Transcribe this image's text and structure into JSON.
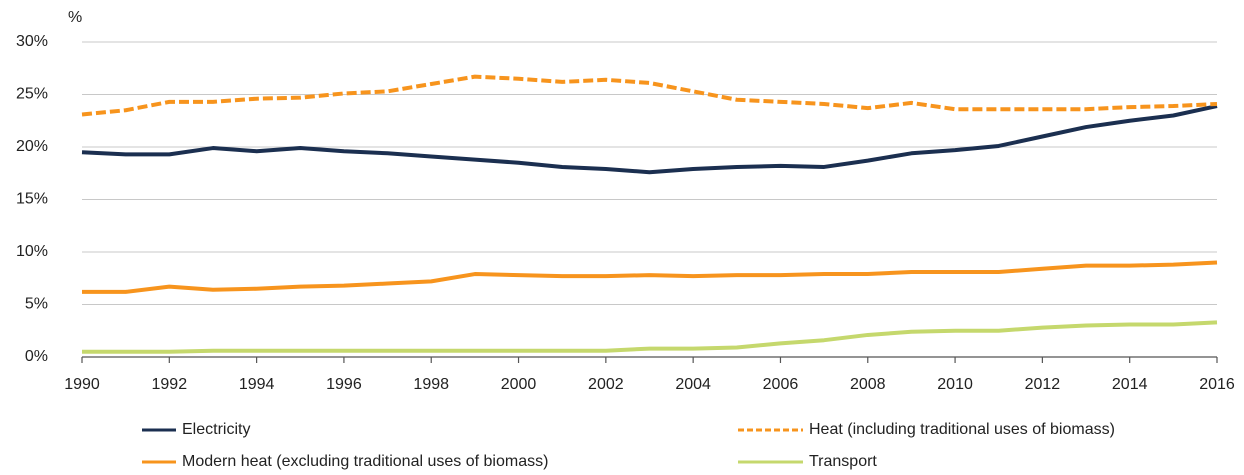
{
  "chart_data": {
    "type": "line",
    "y_axis_label": "%",
    "x": [
      1990,
      1991,
      1992,
      1993,
      1994,
      1995,
      1996,
      1997,
      1998,
      1999,
      2000,
      2001,
      2002,
      2003,
      2004,
      2005,
      2006,
      2007,
      2008,
      2009,
      2010,
      2011,
      2012,
      2013,
      2014,
      2015,
      2016
    ],
    "series": [
      {
        "name": "Electricity",
        "color": "#1b2f50",
        "dash": false,
        "values": [
          19.5,
          19.3,
          19.3,
          19.9,
          19.6,
          19.9,
          19.6,
          19.4,
          19.1,
          18.8,
          18.5,
          18.1,
          17.9,
          17.6,
          17.9,
          18.1,
          18.2,
          18.1,
          18.7,
          19.4,
          19.7,
          20.1,
          21.0,
          21.9,
          22.5,
          23.0,
          23.9
        ]
      },
      {
        "name": "Heat (including traditional uses of biomass)",
        "color": "#f7941d",
        "dash": true,
        "values": [
          23.1,
          23.5,
          24.3,
          24.3,
          24.6,
          24.7,
          25.1,
          25.3,
          26.0,
          26.7,
          26.5,
          26.2,
          26.4,
          26.1,
          25.3,
          24.5,
          24.3,
          24.1,
          23.7,
          24.2,
          23.6,
          23.6,
          23.6,
          23.6,
          23.8,
          23.9,
          24.1
        ]
      },
      {
        "name": "Modern heat (excluding traditional uses of biomass)",
        "color": "#f7941d",
        "dash": false,
        "values": [
          6.2,
          6.2,
          6.7,
          6.4,
          6.5,
          6.7,
          6.8,
          7.0,
          7.2,
          7.9,
          7.8,
          7.7,
          7.7,
          7.8,
          7.7,
          7.8,
          7.8,
          7.9,
          7.9,
          8.1,
          8.1,
          8.1,
          8.4,
          8.7,
          8.7,
          8.8,
          9.0
        ]
      },
      {
        "name": "Transport",
        "color": "#c5d86d",
        "dash": false,
        "values": [
          0.5,
          0.5,
          0.5,
          0.6,
          0.6,
          0.6,
          0.6,
          0.6,
          0.6,
          0.6,
          0.6,
          0.6,
          0.6,
          0.8,
          0.8,
          0.9,
          1.3,
          1.6,
          2.1,
          2.4,
          2.5,
          2.5,
          2.8,
          3.0,
          3.1,
          3.1,
          3.3
        ]
      }
    ],
    "xlim": [
      1990,
      2016
    ],
    "xticks": [
      1990,
      1992,
      1994,
      1996,
      1998,
      2000,
      2002,
      2004,
      2006,
      2008,
      2010,
      2012,
      2014,
      2016
    ],
    "ylim": [
      0,
      30
    ],
    "yticks": [
      {
        "value": 0,
        "label": "0%"
      },
      {
        "value": 5,
        "label": "5%"
      },
      {
        "value": 10,
        "label": "10%"
      },
      {
        "value": 15,
        "label": "15%"
      },
      {
        "value": 20,
        "label": "20%"
      },
      {
        "value": 25,
        "label": "25%"
      },
      {
        "value": 30,
        "label": "30%"
      }
    ],
    "grid": true,
    "legend": "bottom"
  }
}
